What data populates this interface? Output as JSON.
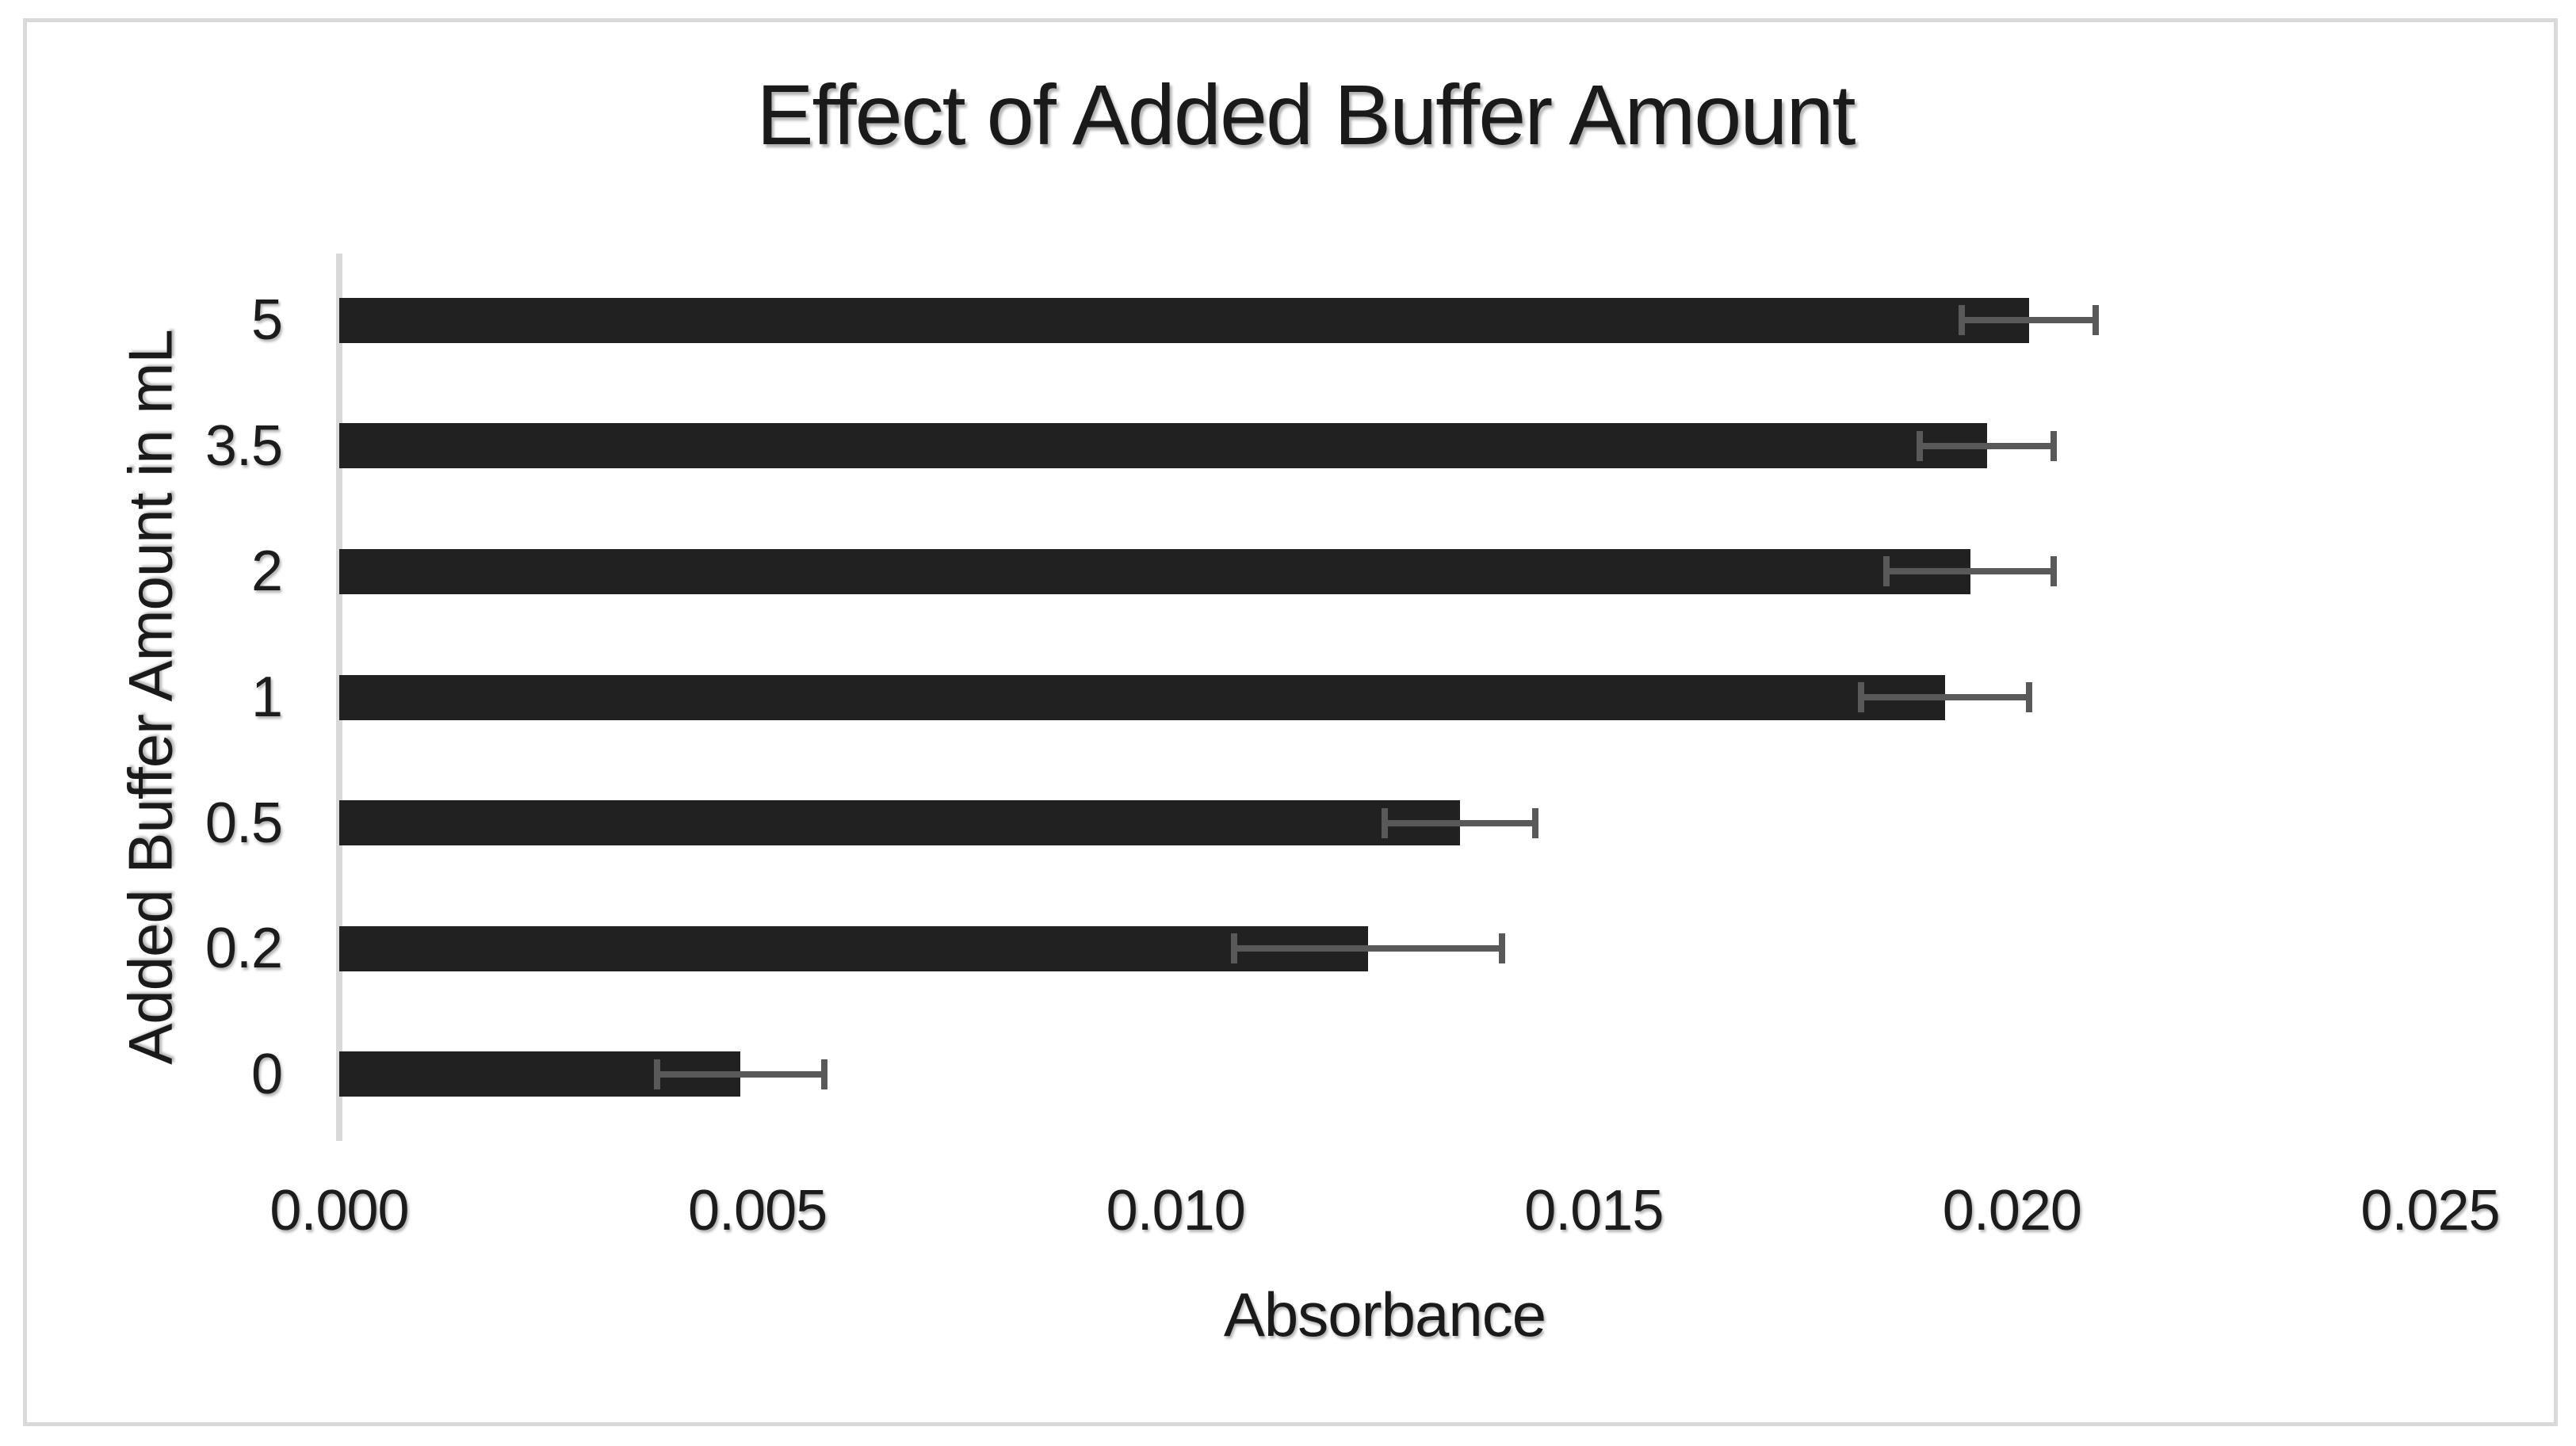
{
  "figure": {
    "background_color": "#ffffff",
    "border_color": "#d9d9d9",
    "text_color": "#1a1a1a"
  },
  "chart_data": {
    "type": "bar",
    "orientation": "horizontal",
    "title": "Effect of Added Buffer Amount",
    "xlabel": "Absorbance",
    "ylabel": "Added Buffer Amount in mL",
    "categories": [
      "5",
      "3.5",
      "2",
      "1",
      "0.5",
      "0.2",
      "0"
    ],
    "values": [
      0.0202,
      0.0197,
      0.0195,
      0.0192,
      0.0134,
      0.0123,
      0.0048
    ],
    "error_bars": [
      0.0008,
      0.0008,
      0.001,
      0.001,
      0.0009,
      0.0016,
      0.001
    ],
    "xlim": [
      0,
      0.025
    ],
    "xticks": [
      0,
      0.005,
      0.01,
      0.015,
      0.02,
      0.025
    ],
    "xtick_labels": [
      "0.000",
      "0.005",
      "0.010",
      "0.015",
      "0.020",
      "0.025"
    ],
    "grid": false,
    "legend": false,
    "bar_color": "#212121",
    "error_color": "#595959",
    "axis_line_color": "#d9d9d9"
  }
}
